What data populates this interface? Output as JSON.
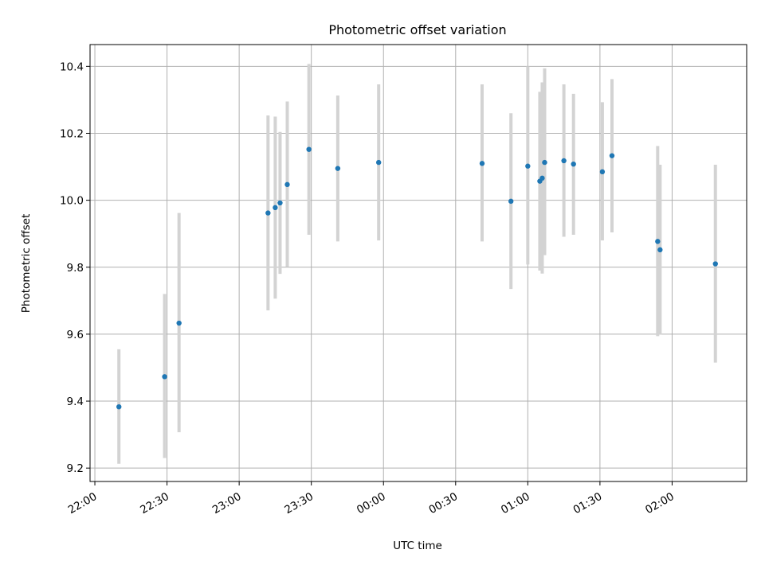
{
  "chart_data": {
    "type": "scatter",
    "title": "Photometric offset variation",
    "xlabel": "UTC time",
    "ylabel": "Photometric offset",
    "x_axis_type": "time",
    "xlim": [
      "21:58",
      "02:31"
    ],
    "ylim": [
      9.16,
      10.465
    ],
    "grid": true,
    "xticks": [
      "22:00",
      "22:30",
      "23:00",
      "23:30",
      "00:00",
      "00:30",
      "01:00",
      "01:30",
      "02:00"
    ],
    "yticks": [
      9.2,
      9.4,
      9.6,
      9.8,
      10.0,
      10.2,
      10.4
    ],
    "ytick_labels": [
      "9.2",
      "9.4",
      "9.6",
      "9.8",
      "10.0",
      "10.2",
      "10.4"
    ],
    "colors": {
      "point": "#1f77b4",
      "errorbar": "#d3d3d3",
      "grid": "#b0b0b0"
    },
    "points": [
      {
        "x": "22:10",
        "y": 9.383,
        "err_low": 9.213,
        "err_high": 9.555
      },
      {
        "x": "22:29",
        "y": 9.473,
        "err_low": 9.23,
        "err_high": 9.72
      },
      {
        "x": "22:35",
        "y": 9.633,
        "err_low": 9.307,
        "err_high": 9.962
      },
      {
        "x": "23:12",
        "y": 9.962,
        "err_low": 9.671,
        "err_high": 10.253
      },
      {
        "x": "23:15",
        "y": 9.978,
        "err_low": 9.706,
        "err_high": 10.25
      },
      {
        "x": "23:17",
        "y": 9.992,
        "err_low": 9.78,
        "err_high": 10.204
      },
      {
        "x": "23:20",
        "y": 10.047,
        "err_low": 9.801,
        "err_high": 10.295
      },
      {
        "x": "23:29",
        "y": 10.152,
        "err_low": 9.897,
        "err_high": 10.407
      },
      {
        "x": "23:41",
        "y": 10.095,
        "err_low": 9.877,
        "err_high": 10.313
      },
      {
        "x": "23:58",
        "y": 10.113,
        "err_low": 9.88,
        "err_high": 10.346
      },
      {
        "x": "00:41",
        "y": 10.11,
        "err_low": 9.877,
        "err_high": 10.346
      },
      {
        "x": "00:53",
        "y": 9.997,
        "err_low": 9.735,
        "err_high": 10.26
      },
      {
        "x": "01:00",
        "y": 10.102,
        "err_low": 9.808,
        "err_high": 10.4
      },
      {
        "x": "01:05",
        "y": 10.057,
        "err_low": 9.79,
        "err_high": 10.324
      },
      {
        "x": "01:06",
        "y": 10.066,
        "err_low": 9.781,
        "err_high": 10.352
      },
      {
        "x": "01:07",
        "y": 10.113,
        "err_low": 9.836,
        "err_high": 10.394
      },
      {
        "x": "01:15",
        "y": 10.118,
        "err_low": 9.891,
        "err_high": 10.346
      },
      {
        "x": "01:19",
        "y": 10.108,
        "err_low": 9.897,
        "err_high": 10.318
      },
      {
        "x": "01:31",
        "y": 10.085,
        "err_low": 9.88,
        "err_high": 10.293
      },
      {
        "x": "01:35",
        "y": 10.133,
        "err_low": 9.904,
        "err_high": 10.362
      },
      {
        "x": "01:54",
        "y": 9.877,
        "err_low": 9.594,
        "err_high": 10.162
      },
      {
        "x": "01:55",
        "y": 9.852,
        "err_low": 9.599,
        "err_high": 10.106
      },
      {
        "x": "02:18",
        "y": 9.81,
        "err_low": 9.515,
        "err_high": 10.106
      }
    ]
  }
}
